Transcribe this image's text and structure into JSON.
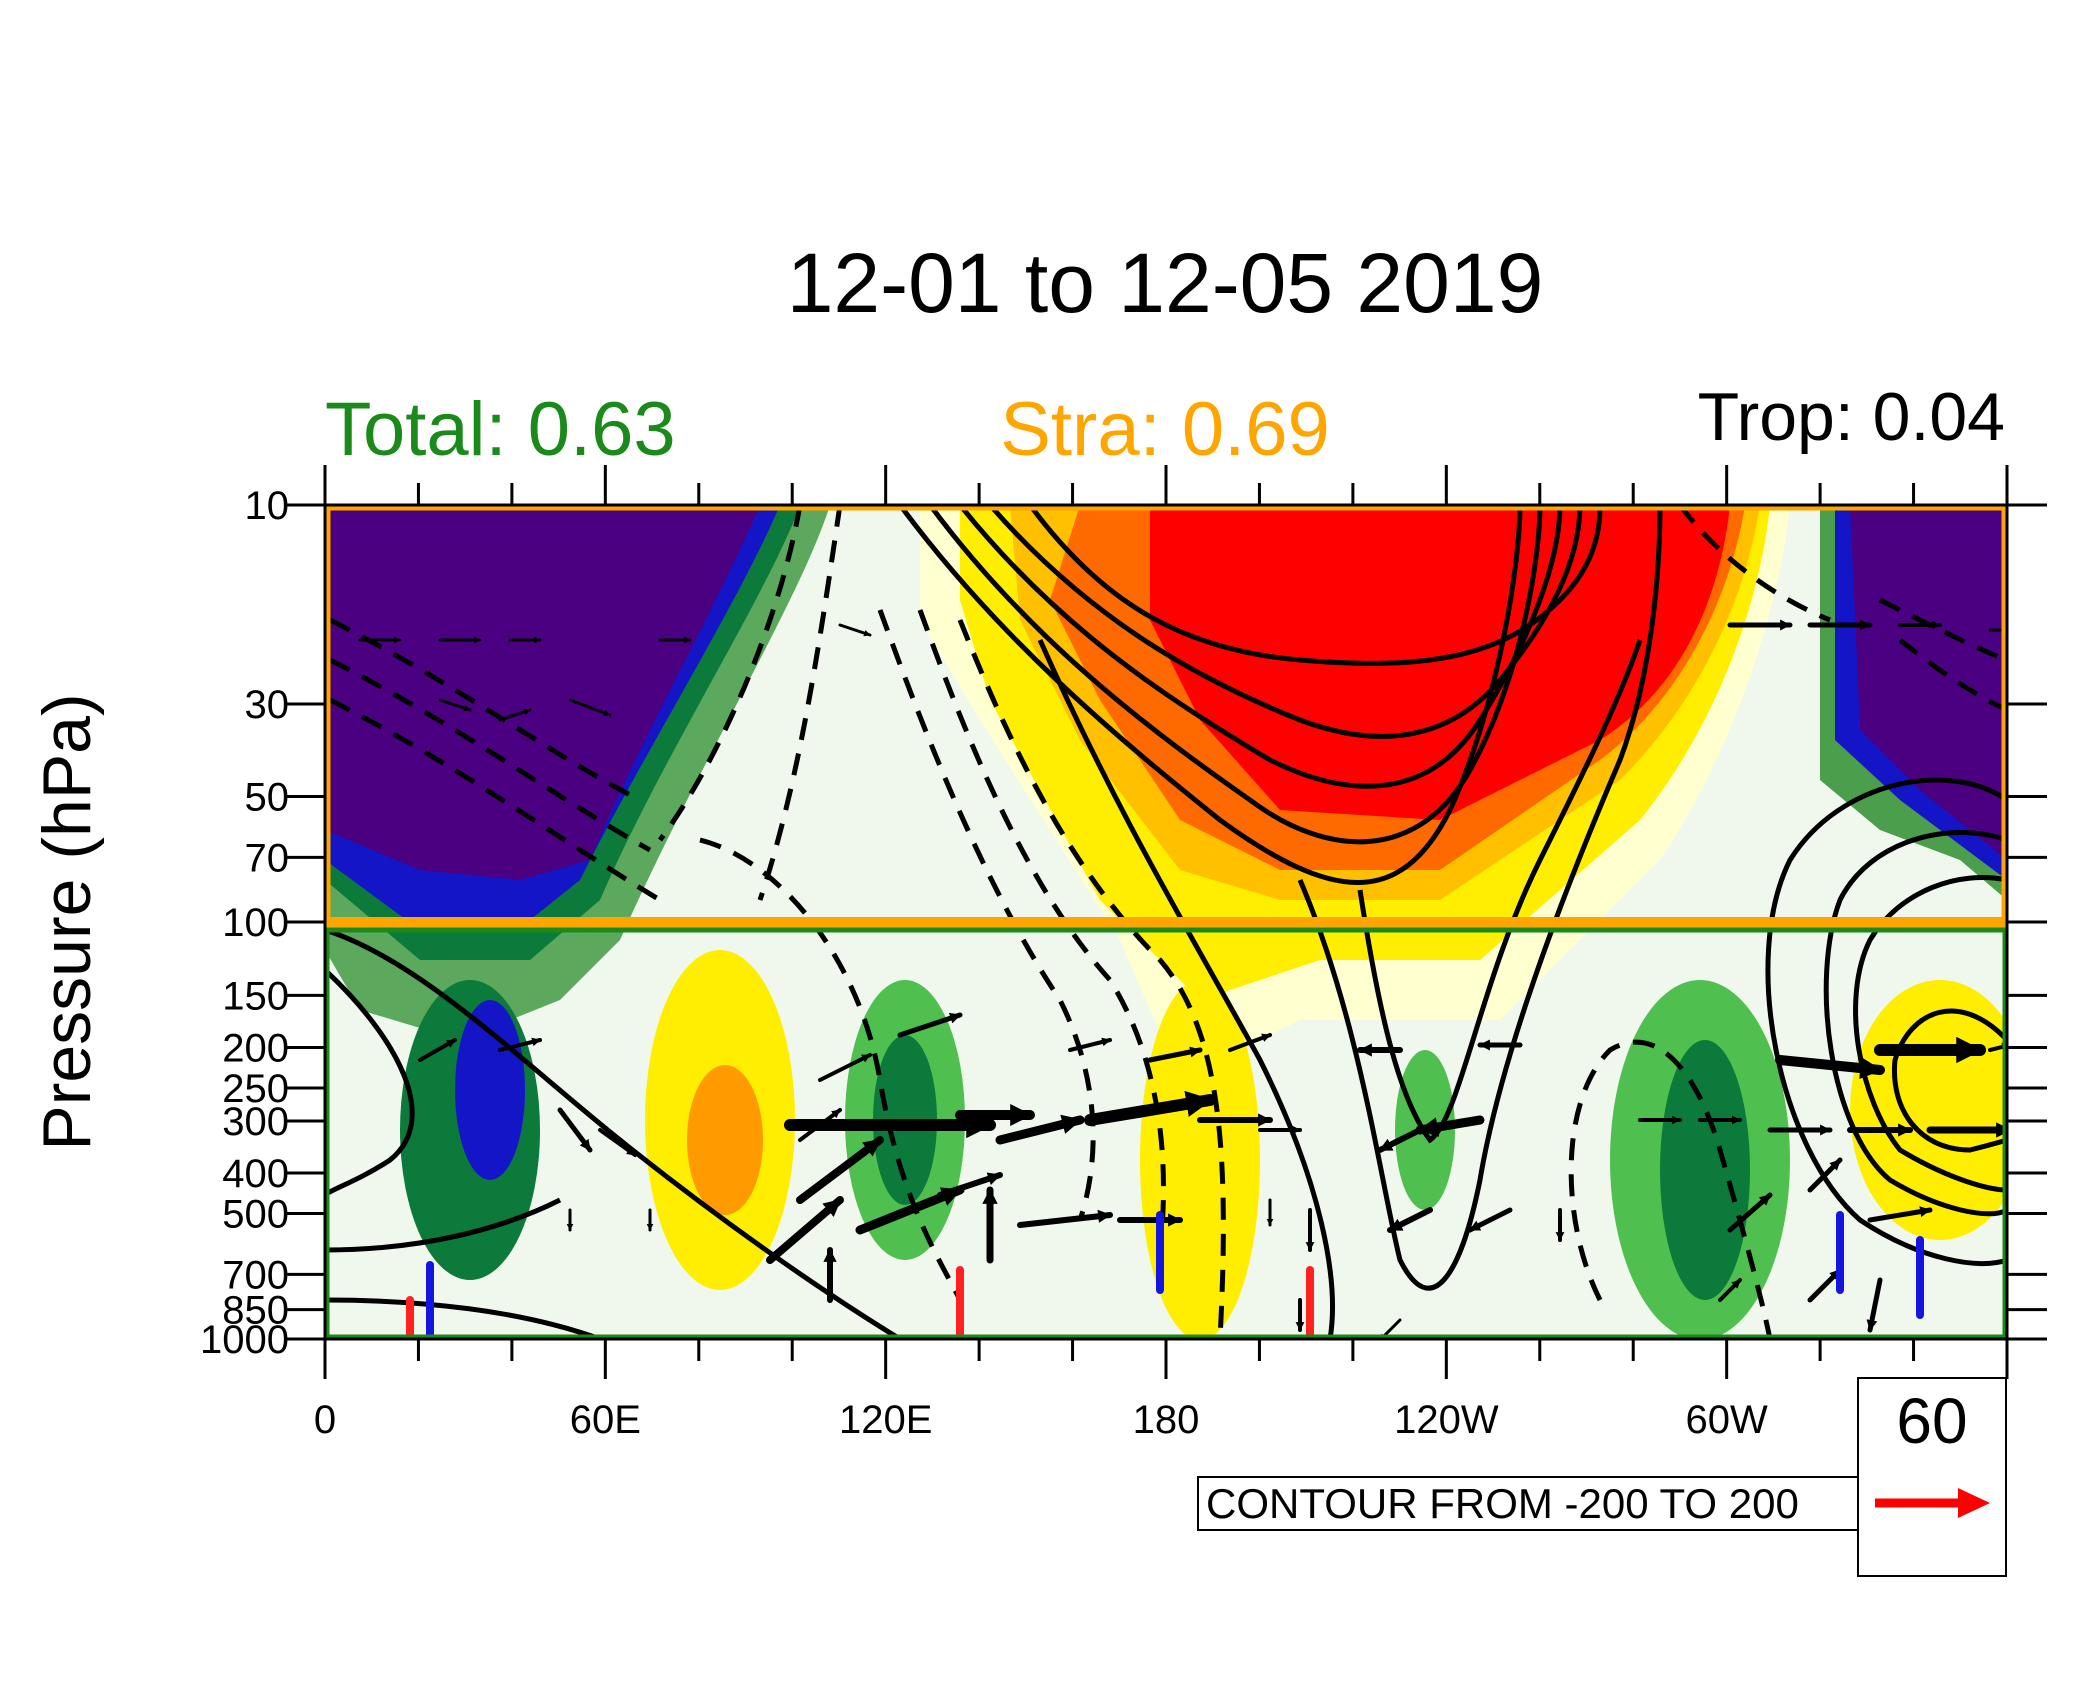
{
  "chart_data": {
    "type": "heatmap",
    "title": "12-01 to 12-05 2019",
    "stats": {
      "total": "Total: 0.63",
      "stra": "Stra: 0.69",
      "trop": "Trop: 0.04"
    },
    "ylabel": "Pressure (hPa)",
    "xlabel": "",
    "y_ticks": [
      "10",
      "30",
      "50",
      "70",
      "100",
      "150",
      "200",
      "250",
      "300",
      "400",
      "500",
      "700",
      "850",
      "1000"
    ],
    "y_values": [
      10,
      30,
      50,
      70,
      100,
      150,
      200,
      250,
      300,
      400,
      500,
      700,
      850,
      1000
    ],
    "y_scale": "log",
    "ylim": [
      1000,
      10
    ],
    "x_ticks": [
      "0",
      "60E",
      "120E",
      "180",
      "120W",
      "60W"
    ],
    "x_values": [
      0,
      60,
      120,
      180,
      240,
      300
    ],
    "xlim": [
      0,
      360
    ],
    "contour_note": "CONTOUR FROM -200 TO 200",
    "reference_vector": "60",
    "colors": {
      "stratosphere_box": "#ffa500",
      "troposphere_box": "#1a8a1a",
      "total_label": "#1a8a1a",
      "stra_label": "#ffa500",
      "reference_arrow": "#ff0000"
    }
  }
}
